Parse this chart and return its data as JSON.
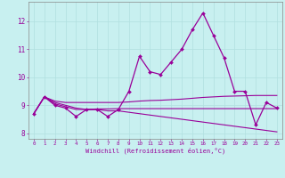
{
  "xlabel": "Windchill (Refroidissement éolien,°C)",
  "background_color": "#c8f0f0",
  "grid_color": "#b0e0e0",
  "line_color": "#990099",
  "xlim": [
    -0.5,
    23.5
  ],
  "ylim": [
    7.8,
    12.7
  ],
  "xticks": [
    0,
    1,
    2,
    3,
    4,
    5,
    6,
    7,
    8,
    9,
    10,
    11,
    12,
    13,
    14,
    15,
    16,
    17,
    18,
    19,
    20,
    21,
    22,
    23
  ],
  "yticks": [
    8,
    9,
    10,
    11,
    12
  ],
  "series1": [
    8.7,
    9.3,
    9.0,
    8.9,
    8.6,
    8.85,
    8.85,
    8.6,
    8.85,
    9.5,
    10.75,
    10.2,
    10.1,
    10.55,
    11.0,
    11.7,
    12.3,
    11.5,
    10.7,
    9.5,
    9.5,
    8.3,
    9.1,
    8.9
  ],
  "series2": [
    8.7,
    9.3,
    9.15,
    9.1,
    9.1,
    9.1,
    9.1,
    9.1,
    9.1,
    9.12,
    9.15,
    9.17,
    9.18,
    9.2,
    9.22,
    9.25,
    9.28,
    9.3,
    9.32,
    9.33,
    9.34,
    9.35,
    9.35,
    9.35
  ],
  "series3": [
    8.7,
    9.3,
    9.05,
    8.95,
    8.85,
    8.85,
    8.87,
    8.87,
    8.88,
    8.88,
    8.88,
    8.88,
    8.88,
    8.88,
    8.88,
    8.88,
    8.88,
    8.88,
    8.88,
    8.88,
    8.88,
    8.88,
    8.88,
    8.88
  ],
  "series4": [
    8.7,
    9.3,
    9.1,
    9.0,
    8.9,
    8.85,
    8.85,
    8.8,
    8.8,
    8.75,
    8.7,
    8.65,
    8.6,
    8.55,
    8.5,
    8.45,
    8.4,
    8.35,
    8.3,
    8.25,
    8.2,
    8.15,
    8.1,
    8.05
  ]
}
